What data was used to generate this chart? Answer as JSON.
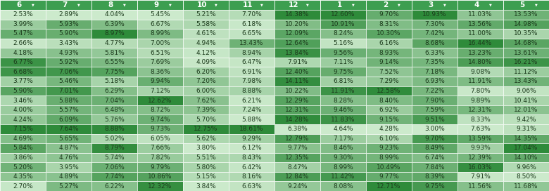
{
  "columns": [
    "6",
    "7",
    "8",
    "9",
    "10",
    "11",
    "12",
    "1",
    "2",
    "3",
    "4",
    "5"
  ],
  "rows": [
    [
      2.53,
      2.89,
      4.04,
      5.45,
      5.21,
      7.7,
      14.38,
      12.6,
      9.7,
      10.93,
      11.03,
      13.53
    ],
    [
      3.99,
      5.93,
      6.39,
      6.67,
      5.58,
      6.18,
      10.2,
      10.91,
      8.31,
      7.3,
      13.56,
      14.98
    ],
    [
      5.47,
      5.9,
      8.97,
      8.99,
      4.61,
      6.65,
      12.09,
      8.24,
      10.3,
      7.42,
      11.0,
      10.35
    ],
    [
      2.66,
      3.43,
      4.77,
      7.0,
      4.94,
      13.43,
      12.64,
      5.16,
      6.16,
      8.68,
      16.44,
      14.68
    ],
    [
      4.18,
      4.93,
      5.81,
      6.51,
      4.12,
      8.94,
      13.84,
      9.56,
      8.93,
      6.33,
      13.23,
      13.61
    ],
    [
      6.77,
      5.92,
      6.55,
      7.69,
      4.09,
      6.47,
      7.91,
      7.11,
      9.14,
      7.35,
      14.8,
      16.21
    ],
    [
      6.68,
      7.06,
      7.75,
      8.36,
      6.2,
      6.91,
      12.4,
      9.75,
      7.52,
      7.18,
      9.08,
      11.12
    ],
    [
      3.77,
      5.46,
      5.18,
      9.94,
      7.2,
      7.98,
      14.11,
      6.81,
      7.29,
      6.93,
      11.91,
      13.43
    ],
    [
      5.9,
      7.01,
      6.29,
      7.12,
      6.0,
      8.88,
      10.22,
      11.91,
      12.58,
      7.22,
      7.8,
      9.06
    ],
    [
      3.46,
      5.88,
      7.04,
      12.62,
      7.62,
      6.21,
      12.29,
      8.28,
      8.4,
      7.9,
      9.89,
      10.41
    ],
    [
      4.0,
      5.57,
      6.48,
      8.72,
      7.39,
      7.24,
      12.31,
      9.46,
      6.92,
      7.59,
      12.31,
      12.01
    ],
    [
      4.24,
      6.09,
      5.76,
      9.74,
      5.7,
      5.88,
      14.28,
      11.83,
      9.15,
      9.51,
      8.33,
      9.42
    ],
    [
      7.15,
      7.64,
      8.88,
      9.73,
      12.75,
      18.61,
      6.38,
      4.64,
      4.28,
      3.0,
      7.63,
      9.31
    ],
    [
      4.69,
      5.65,
      5.02,
      6.05,
      5.62,
      9.29,
      12.79,
      7.17,
      6.1,
      9.7,
      13.59,
      14.35
    ],
    [
      5.84,
      4.87,
      8.79,
      7.66,
      3.8,
      6.12,
      9.77,
      8.46,
      9.23,
      8.49,
      9.93,
      17.04
    ],
    [
      3.86,
      4.76,
      5.74,
      7.82,
      5.51,
      8.43,
      12.35,
      9.3,
      8.99,
      6.74,
      12.39,
      14.1
    ],
    [
      5.2,
      3.95,
      7.06,
      9.79,
      5.8,
      6.42,
      8.47,
      8.99,
      10.49,
      7.84,
      16.03,
      9.96
    ],
    [
      4.35,
      4.89,
      7.74,
      10.86,
      5.15,
      8.16,
      12.84,
      11.42,
      9.77,
      8.39,
      7.91,
      8.5
    ],
    [
      2.7,
      5.27,
      6.22,
      12.32,
      3.84,
      6.63,
      9.24,
      8.08,
      12.71,
      9.75,
      11.56,
      11.68
    ]
  ],
  "header_color": "#3d9e50",
  "header_text_color": "#ffffff",
  "cell_text_color": "#1c3a1c",
  "color_low": [
    0.78,
    0.93,
    0.78
  ],
  "color_high": [
    0.2,
    0.65,
    0.25
  ],
  "color_highlight_low": [
    0.85,
    0.96,
    0.85
  ],
  "font_size": 6.5,
  "header_font_size": 7.5
}
